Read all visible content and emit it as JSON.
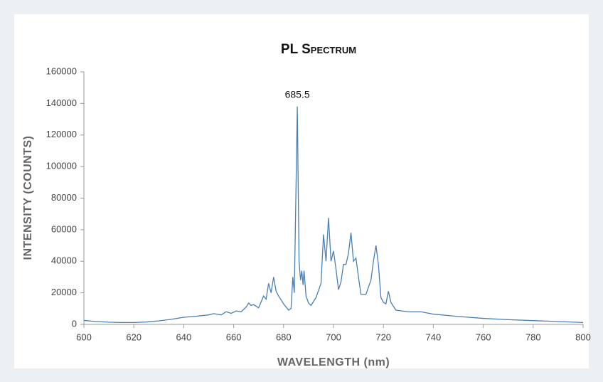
{
  "chart_data": {
    "type": "line",
    "title": "PL Spectrum",
    "x_label": "WAVELENGTH (nm)",
    "y_label": "INTENSITY (COUNTS)",
    "annotations": [
      {
        "text": "685.5"
      }
    ],
    "color": "#4a7fb5",
    "x": [
      600,
      605,
      610,
      615,
      620,
      625,
      630,
      635,
      640,
      645,
      650,
      652,
      655,
      657,
      659,
      661,
      663,
      665,
      666,
      667,
      668,
      670,
      672,
      673,
      674,
      675,
      676,
      677,
      678,
      680,
      682,
      683,
      683.7,
      684.3,
      685.5,
      686.2,
      686.8,
      687.3,
      687.8,
      688.2,
      689,
      690,
      691,
      693,
      695,
      696,
      697,
      698,
      699,
      700,
      701,
      702,
      703,
      704,
      705,
      706,
      707,
      708,
      709,
      710,
      711,
      713,
      715,
      716,
      717,
      718,
      719,
      720,
      721,
      722,
      723,
      725,
      730,
      735,
      740,
      750,
      760,
      770,
      780,
      790,
      800
    ],
    "values": [
      2500,
      1800,
      1400,
      1200,
      1200,
      1500,
      2200,
      3200,
      4500,
      5200,
      6000,
      6800,
      6000,
      8000,
      7000,
      8500,
      8000,
      11000,
      13500,
      12000,
      12500,
      10500,
      18000,
      16000,
      26000,
      20000,
      30000,
      21000,
      18000,
      13000,
      9000,
      10000,
      30000,
      20000,
      138000,
      40000,
      28000,
      34000,
      25000,
      34000,
      18000,
      13500,
      12000,
      17000,
      26000,
      57000,
      40000,
      67500,
      40000,
      46500,
      35000,
      22000,
      27000,
      38000,
      38000,
      45000,
      58000,
      40000,
      42000,
      30000,
      19000,
      19000,
      28000,
      40000,
      50000,
      38000,
      17000,
      14000,
      13000,
      21000,
      14000,
      9000,
      8000,
      8000,
      6500,
      5000,
      3800,
      3000,
      2400,
      1800,
      1200
    ],
    "xlim": [
      600,
      800
    ],
    "xticks": [
      600,
      620,
      640,
      660,
      680,
      700,
      720,
      740,
      760,
      780,
      800
    ],
    "ylim": [
      0,
      160000
    ],
    "yticks": [
      0,
      20000,
      40000,
      60000,
      80000,
      100000,
      120000,
      140000,
      160000
    ]
  }
}
